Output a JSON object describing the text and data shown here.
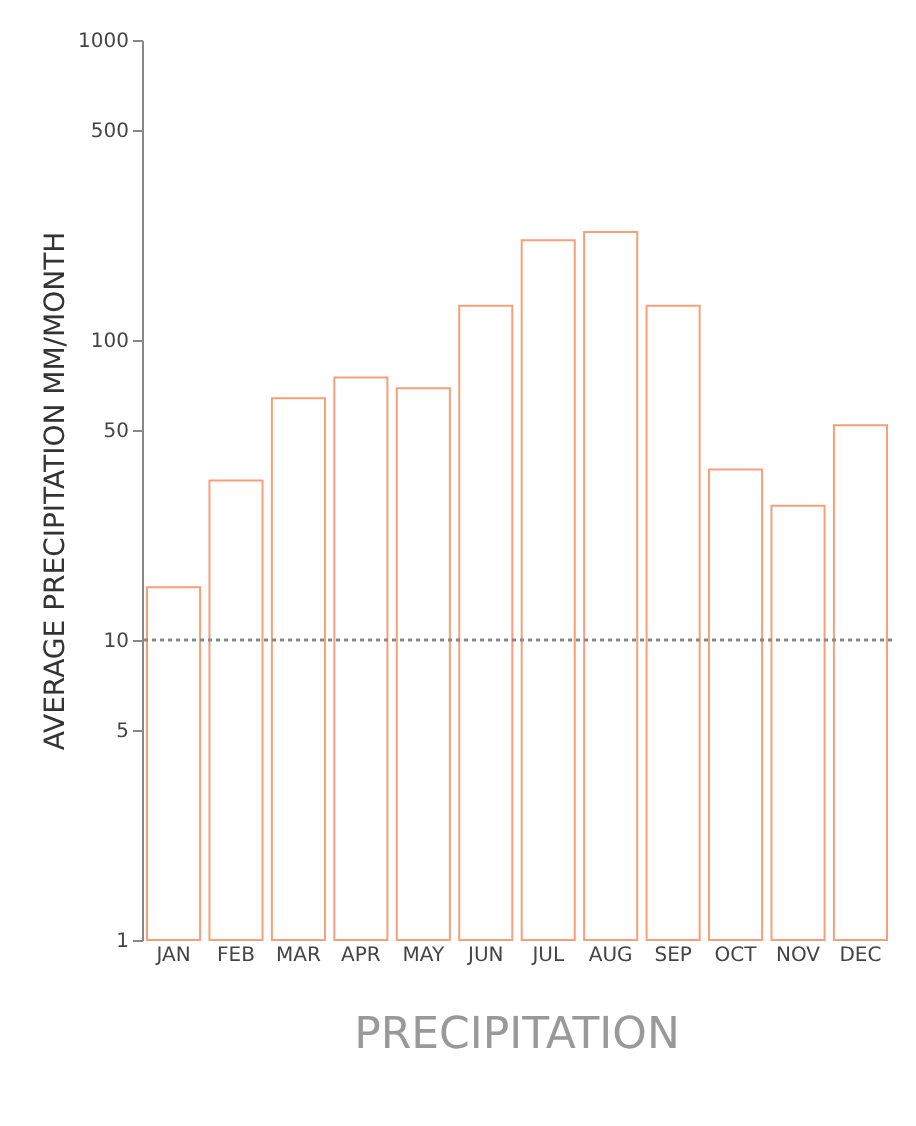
{
  "chart_data": {
    "type": "bar",
    "title": "PRECIPITATION",
    "ylabel": "AVERAGE PRECIPITATION MM/MONTH",
    "categories": [
      "JAN",
      "FEB",
      "MAR",
      "APR",
      "MAY",
      "JUN",
      "JUL",
      "AUG",
      "SEP",
      "OCT",
      "NOV",
      "DEC"
    ],
    "values": [
      15,
      34,
      64,
      75,
      69,
      130,
      215,
      229,
      130,
      37,
      28,
      52
    ],
    "color": "#f5a07a",
    "log": true,
    "ylim": [
      1,
      1000
    ],
    "yticks": [
      1,
      5,
      10,
      50,
      100,
      500,
      1000
    ],
    "grid": false,
    "ref_lines": [
      {
        "axis": "y",
        "value": 10,
        "label": null,
        "color": "#888888",
        "line_style": "dotted"
      }
    ]
  }
}
